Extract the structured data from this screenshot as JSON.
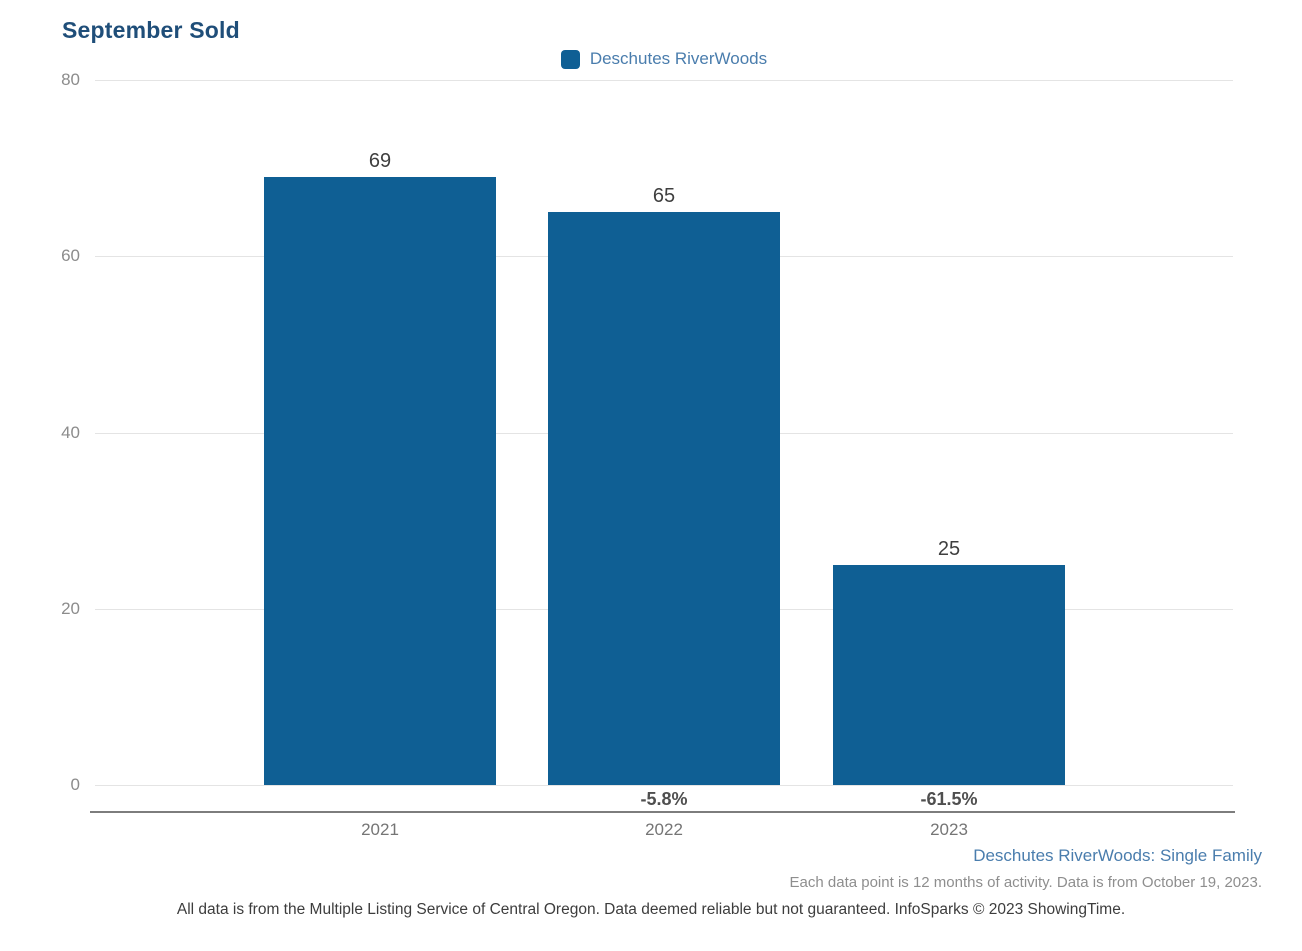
{
  "title": "September Sold",
  "legend": {
    "label": "Deschutes RiverWoods",
    "color": "#0f5f94"
  },
  "chart_data": {
    "type": "bar",
    "title": "September Sold",
    "series_name": "Deschutes RiverWoods",
    "categories": [
      "2021",
      "2022",
      "2023"
    ],
    "values": [
      69,
      65,
      25
    ],
    "change_labels": [
      "",
      "-5.8%",
      "-61.5%"
    ],
    "xlabel": "",
    "ylabel": "",
    "ylim": [
      0,
      80
    ],
    "yticks": [
      0,
      20,
      40,
      60,
      80
    ],
    "grid": true,
    "legend_position": "top-center",
    "bar_color": "#0f5f94"
  },
  "footer": {
    "series_link": "Deschutes RiverWoods: Single Family",
    "data_note": "Each data point is 12 months of activity. Data is from October 19, 2023.",
    "disclaimer": "All data is from the Multiple Listing Service of Central Oregon. Data deemed reliable but not guaranteed. InfoSparks © 2023 ShowingTime."
  }
}
